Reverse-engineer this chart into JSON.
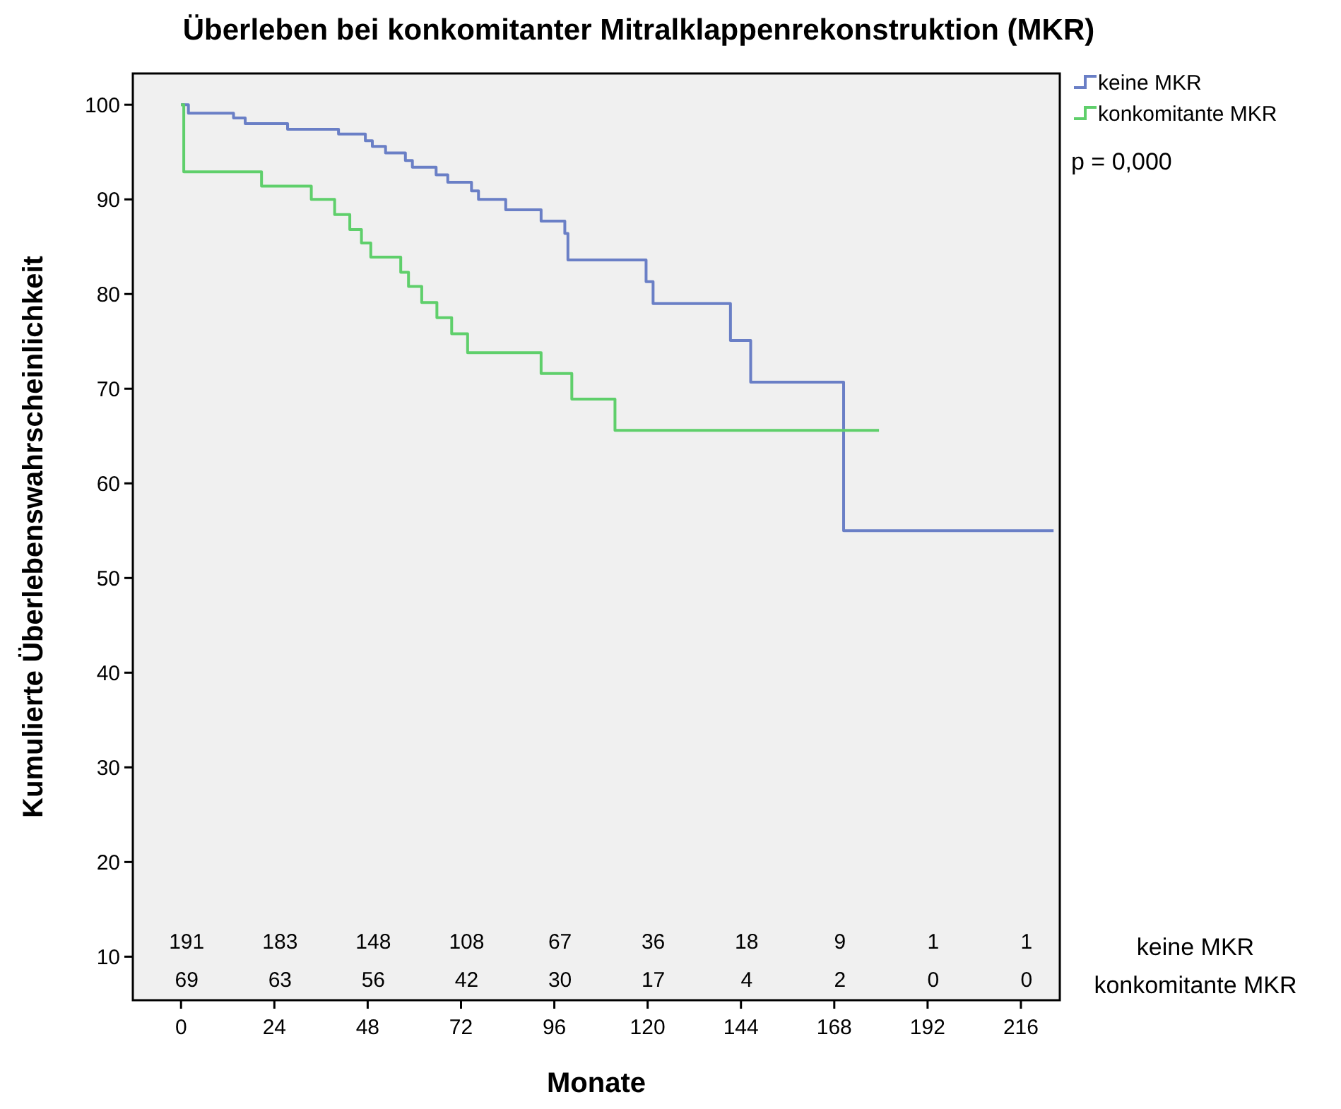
{
  "chart_data": {
    "type": "step",
    "title": "Überleben bei konkomitanter Mitralklappenrekonstruktion (MKR)",
    "xlabel": "Monate",
    "ylabel": "Kumulierte Überlebenswahrscheinlichkeit",
    "xlim": [
      -12.4,
      226
    ],
    "xticks": [
      0,
      24,
      48,
      72,
      96,
      120,
      144,
      168,
      192,
      216
    ],
    "ylim": [
      5.4,
      103.3
    ],
    "yticks": [
      10,
      20,
      30,
      40,
      50,
      60,
      70,
      80,
      90,
      100
    ],
    "grid": false,
    "legend": "top right",
    "marker": "none",
    "line_style": "solid",
    "series": [
      {
        "name": "keine MKR",
        "color": "#6a7fc6",
        "x": [
          0,
          1.9,
          13.5,
          16.5,
          27.4,
          40.5,
          47.4,
          49.2,
          52.6,
          57.7,
          59.5,
          65.6,
          68.6,
          74.7,
          76.5,
          83.5,
          92.6,
          98.7,
          99.5,
          119.6,
          121.4,
          141.3,
          146.5,
          170.4,
          224.4
        ],
        "values": [
          100,
          99.1,
          98.6,
          98.0,
          97.4,
          96.9,
          96.2,
          95.6,
          94.9,
          94.1,
          93.4,
          92.6,
          91.8,
          90.9,
          90.0,
          88.9,
          87.7,
          86.4,
          83.6,
          81.3,
          79.0,
          75.1,
          70.7,
          55.0,
          55.0
        ]
      },
      {
        "name": "konkomitante MKR",
        "color": "#5fcf6b",
        "x": [
          0,
          0.7,
          20.7,
          33.5,
          39.5,
          43.4,
          46.4,
          48.8,
          56.5,
          58.5,
          61.9,
          65.8,
          69.6,
          73.7,
          92.6,
          100.5,
          111.6,
          179.5
        ],
        "values": [
          100,
          92.9,
          91.4,
          90.0,
          88.4,
          86.8,
          85.4,
          83.9,
          82.3,
          80.8,
          79.1,
          77.5,
          75.8,
          73.8,
          71.6,
          68.9,
          65.6,
          65.6
        ]
      }
    ],
    "annotations": [
      "p = 0,000",
      "keine MKR",
      "konkomitante MKR",
      "191",
      "183",
      "148",
      "108",
      "67",
      "36",
      "18",
      "9",
      "1",
      "1",
      "69",
      "63",
      "56",
      "42",
      "30",
      "17",
      "4",
      "2",
      "0",
      "0"
    ]
  }
}
